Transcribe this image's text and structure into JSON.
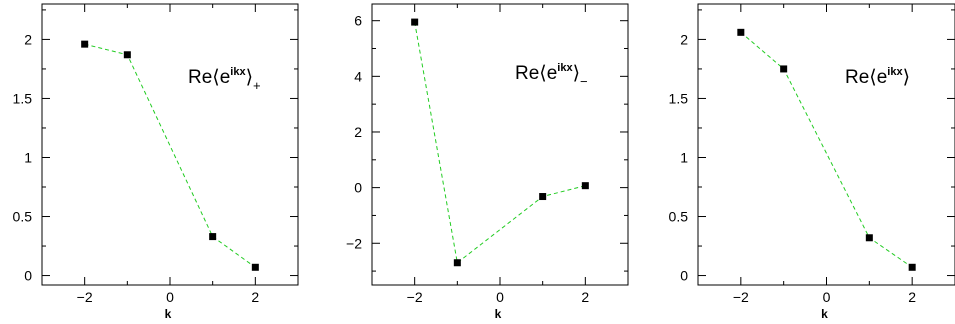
{
  "chart_data": [
    {
      "type": "line",
      "xlabel": "k",
      "xlim": [
        -3,
        3
      ],
      "ylim": [
        -0.08,
        2.3
      ],
      "xticks": [
        -2,
        0,
        2
      ],
      "xtick_labels": [
        "−2",
        "0",
        "2"
      ],
      "yticks": [
        0,
        0.5,
        1,
        1.5,
        2
      ],
      "ytick_labels": [
        "0",
        "0.5",
        "1",
        "1.5",
        "2"
      ],
      "annotation": {
        "prefix": "Re",
        "exponent": "ikx",
        "suffix": "+"
      },
      "series": [
        {
          "x": [
            -2,
            -1,
            1,
            2
          ],
          "y": [
            1.96,
            1.87,
            0.33,
            0.07
          ],
          "line_color": "#22cc22",
          "line_style": "dashed",
          "marker": "filled-square"
        }
      ],
      "grid": false
    },
    {
      "type": "line",
      "xlabel": "k",
      "xlim": [
        -3,
        3
      ],
      "ylim": [
        -3.5,
        6.6
      ],
      "xticks": [
        -2,
        0,
        2
      ],
      "xtick_labels": [
        "−2",
        "0",
        "2"
      ],
      "yticks": [
        -2,
        0,
        2,
        4,
        6
      ],
      "ytick_labels": [
        "−2",
        "0",
        "2",
        "4",
        "6"
      ],
      "annotation": {
        "prefix": "Re",
        "exponent": "ikx",
        "suffix": "−"
      },
      "series": [
        {
          "x": [
            -2,
            -1,
            1,
            2
          ],
          "y": [
            5.95,
            -2.7,
            -0.32,
            0.07
          ],
          "line_color": "#22cc22",
          "line_style": "dashed",
          "marker": "filled-square"
        }
      ],
      "grid": false
    },
    {
      "type": "line",
      "xlabel": "k",
      "xlim": [
        -3,
        3
      ],
      "ylim": [
        -0.08,
        2.3
      ],
      "xticks": [
        -2,
        0,
        2
      ],
      "xtick_labels": [
        "−2",
        "0",
        "2"
      ],
      "yticks": [
        0,
        0.5,
        1,
        1.5,
        2
      ],
      "ytick_labels": [
        "0",
        "0.5",
        "1",
        "1.5",
        "2"
      ],
      "annotation": {
        "prefix": "Re",
        "exponent": "ikx",
        "suffix": ""
      },
      "series": [
        {
          "x": [
            -2,
            -1,
            1,
            2
          ],
          "y": [
            2.06,
            1.75,
            0.32,
            0.07
          ],
          "line_color": "#22cc22",
          "line_style": "dashed",
          "marker": "filled-square"
        }
      ],
      "grid": false
    }
  ]
}
